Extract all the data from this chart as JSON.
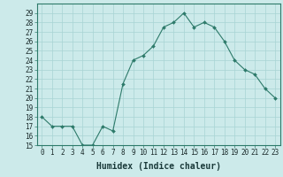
{
  "x": [
    0,
    1,
    2,
    3,
    4,
    5,
    6,
    7,
    8,
    9,
    10,
    11,
    12,
    13,
    14,
    15,
    16,
    17,
    18,
    19,
    20,
    21,
    22,
    23
  ],
  "y": [
    18,
    17,
    17,
    17,
    15,
    15,
    17,
    16.5,
    21.5,
    24,
    24.5,
    25.5,
    27.5,
    28,
    29,
    27.5,
    28,
    27.5,
    26,
    24,
    23,
    22.5,
    21,
    20
  ],
  "line_color": "#2d7a6a",
  "marker_color": "#2d7a6a",
  "bg_color": "#cceaea",
  "grid_color": "#a8d4d4",
  "xlabel": "Humidex (Indice chaleur)",
  "xlabel_fontsize": 7,
  "xlim": [
    -0.5,
    23.5
  ],
  "ylim": [
    15,
    30
  ],
  "yticks": [
    15,
    16,
    17,
    18,
    19,
    20,
    21,
    22,
    23,
    24,
    25,
    26,
    27,
    28,
    29
  ],
  "xtick_labels": [
    "0",
    "1",
    "2",
    "3",
    "4",
    "5",
    "6",
    "7",
    "8",
    "9",
    "10",
    "11",
    "12",
    "13",
    "14",
    "15",
    "16",
    "17",
    "18",
    "19",
    "20",
    "21",
    "22",
    "23"
  ],
  "tick_fontsize": 5.5
}
